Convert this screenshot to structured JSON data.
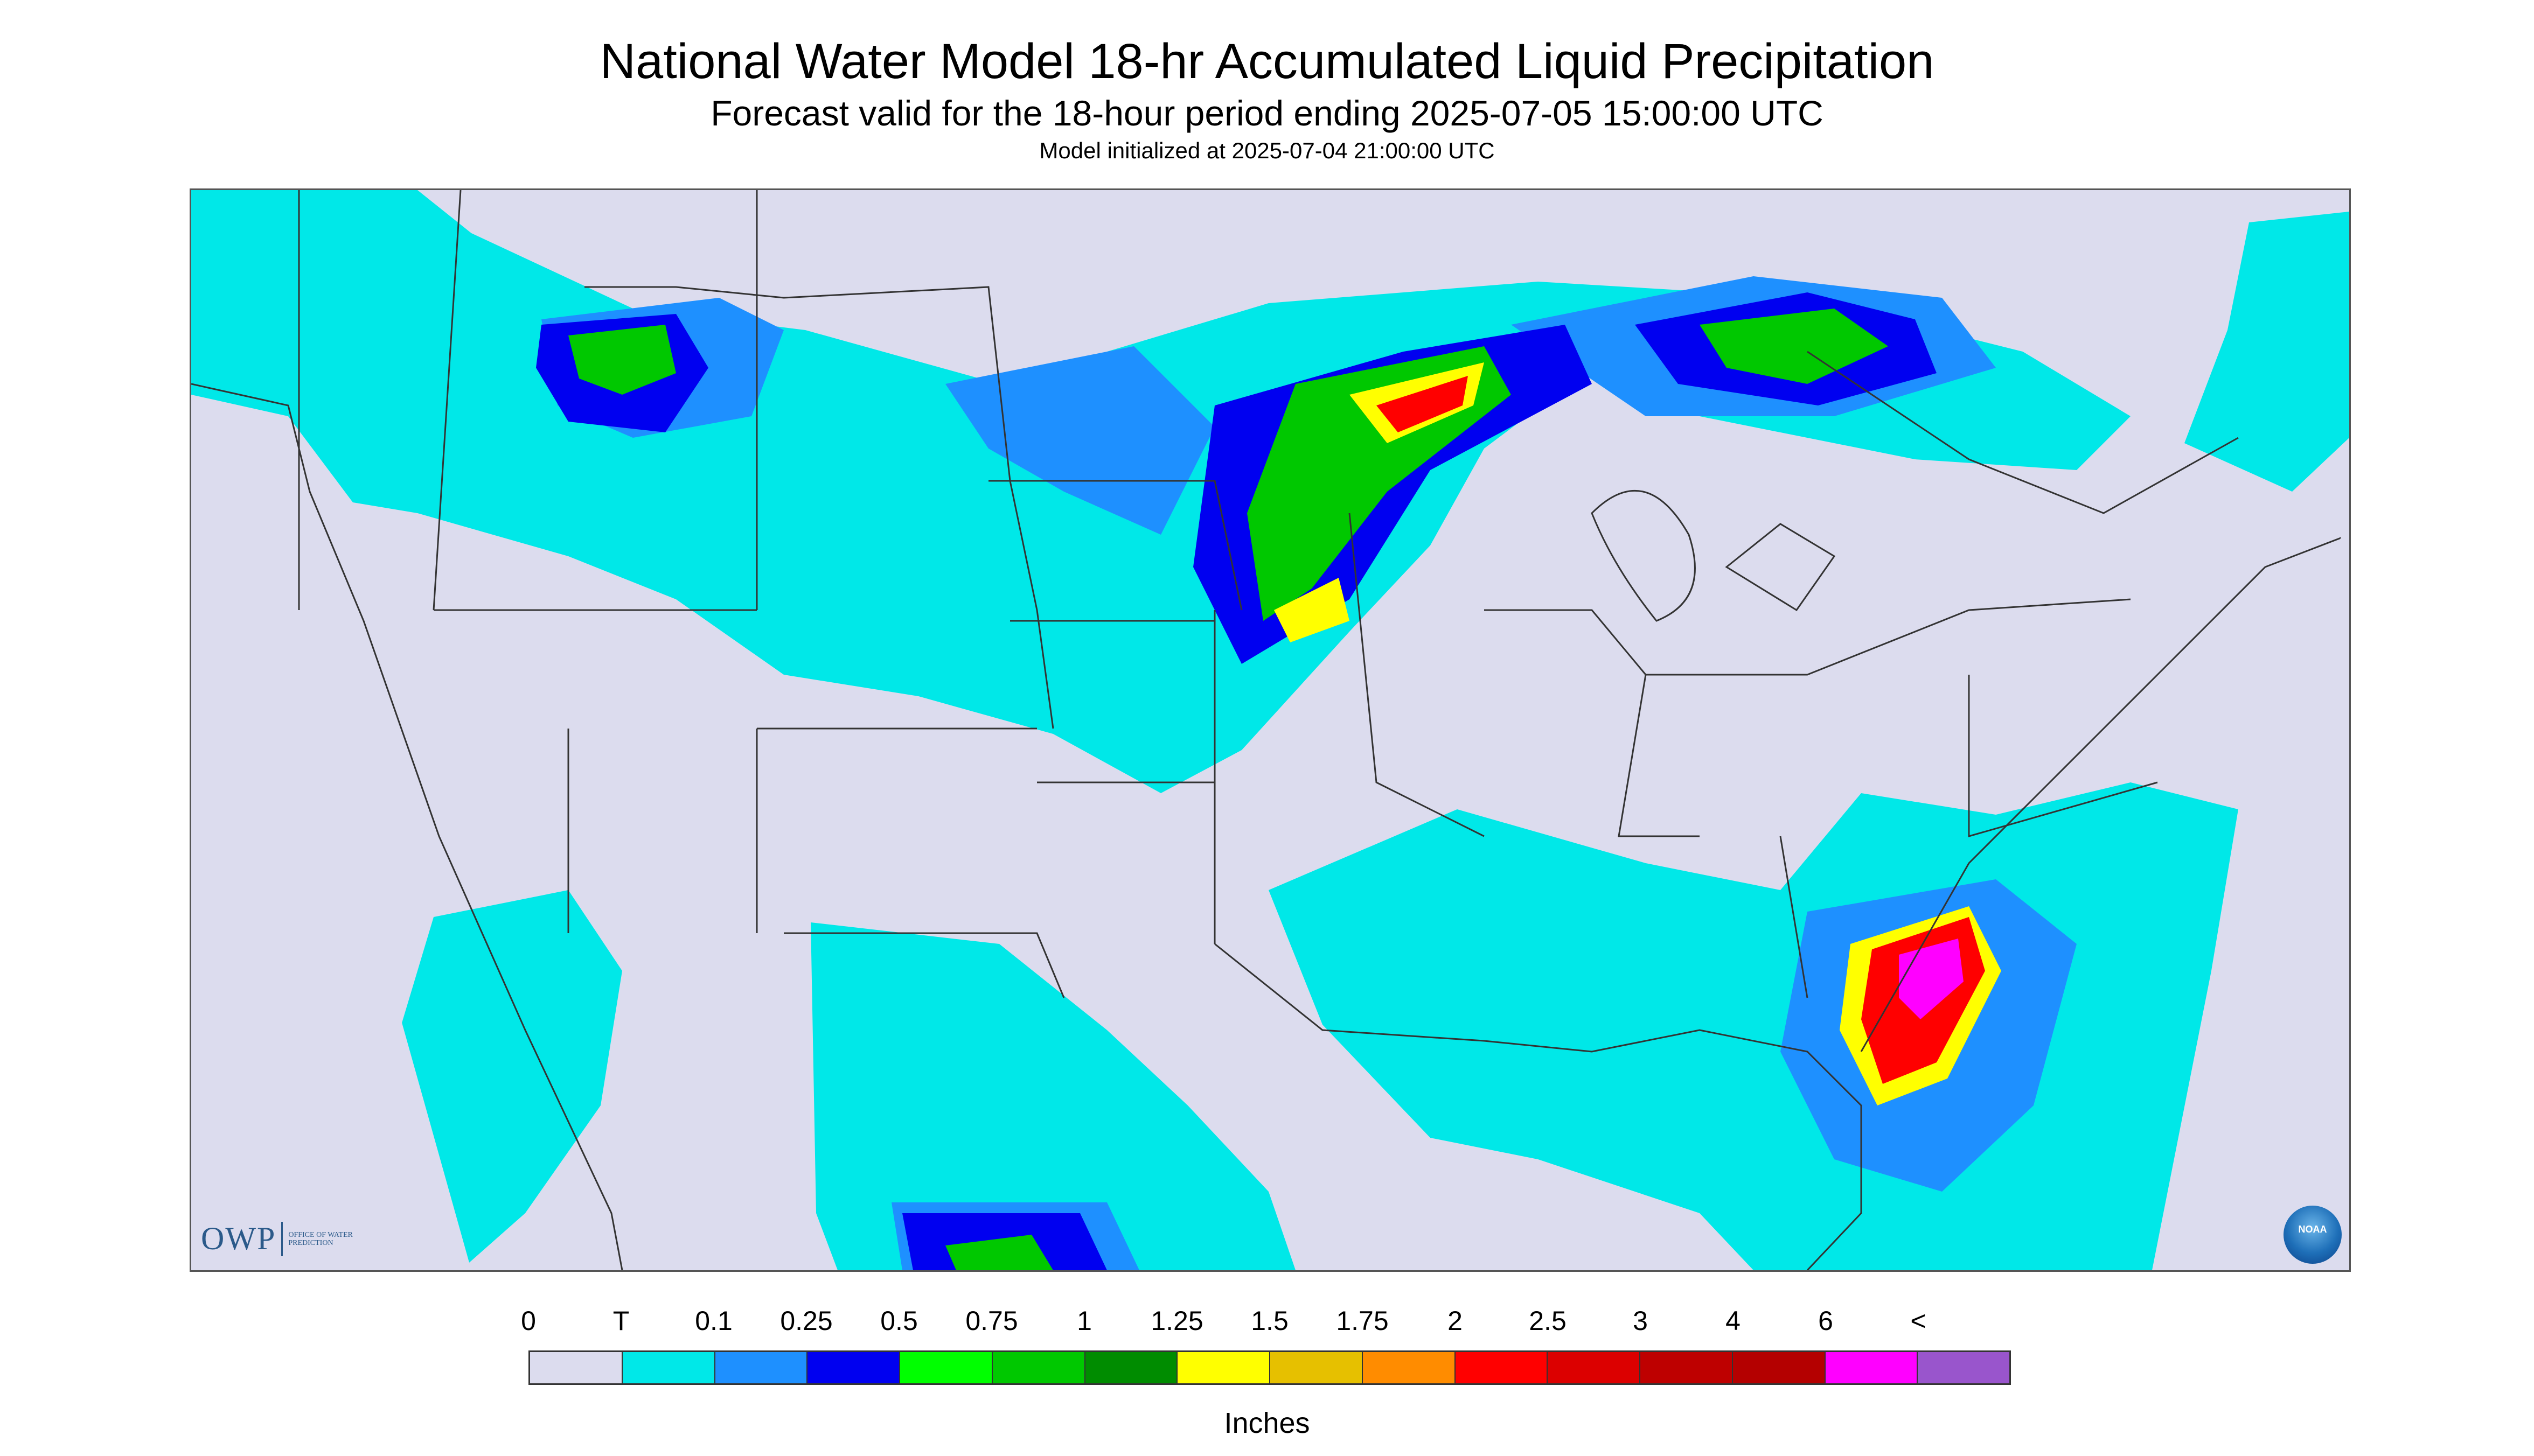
{
  "header": {
    "title": "National Water Model 18-hr Accumulated Liquid Precipitation",
    "subtitle": "Forecast valid for the 18-hour period ending 2025-07-05 15:00:00 UTC",
    "init": "Model initialized at 2025-07-04 21:00:00 UTC"
  },
  "logos": {
    "owp": "OWP",
    "owp_sub": "Office of Water Prediction",
    "noaa": "NOAA"
  },
  "legend": {
    "labels": [
      "0",
      "T",
      "0.1",
      "0.25",
      "0.5",
      "0.75",
      "1",
      "1.25",
      "1.5",
      "1.75",
      "2",
      "2.5",
      "3",
      "4",
      "6",
      "<"
    ],
    "colors": [
      "#dcdcee",
      "#00e8e8",
      "#1e90ff",
      "#0000f0",
      "#00ff00",
      "#00c800",
      "#008c00",
      "#ffff00",
      "#e6c000",
      "#ff8c00",
      "#ff0000",
      "#dc0000",
      "#be0000",
      "#b40000",
      "#ff00ff",
      "#9955cc"
    ],
    "units": "Inches"
  },
  "map": {
    "background_color": "#dcdcee",
    "boundary_color": "#333333",
    "features": [
      "precipitation-shading",
      "state-boundaries",
      "coastlines"
    ]
  }
}
